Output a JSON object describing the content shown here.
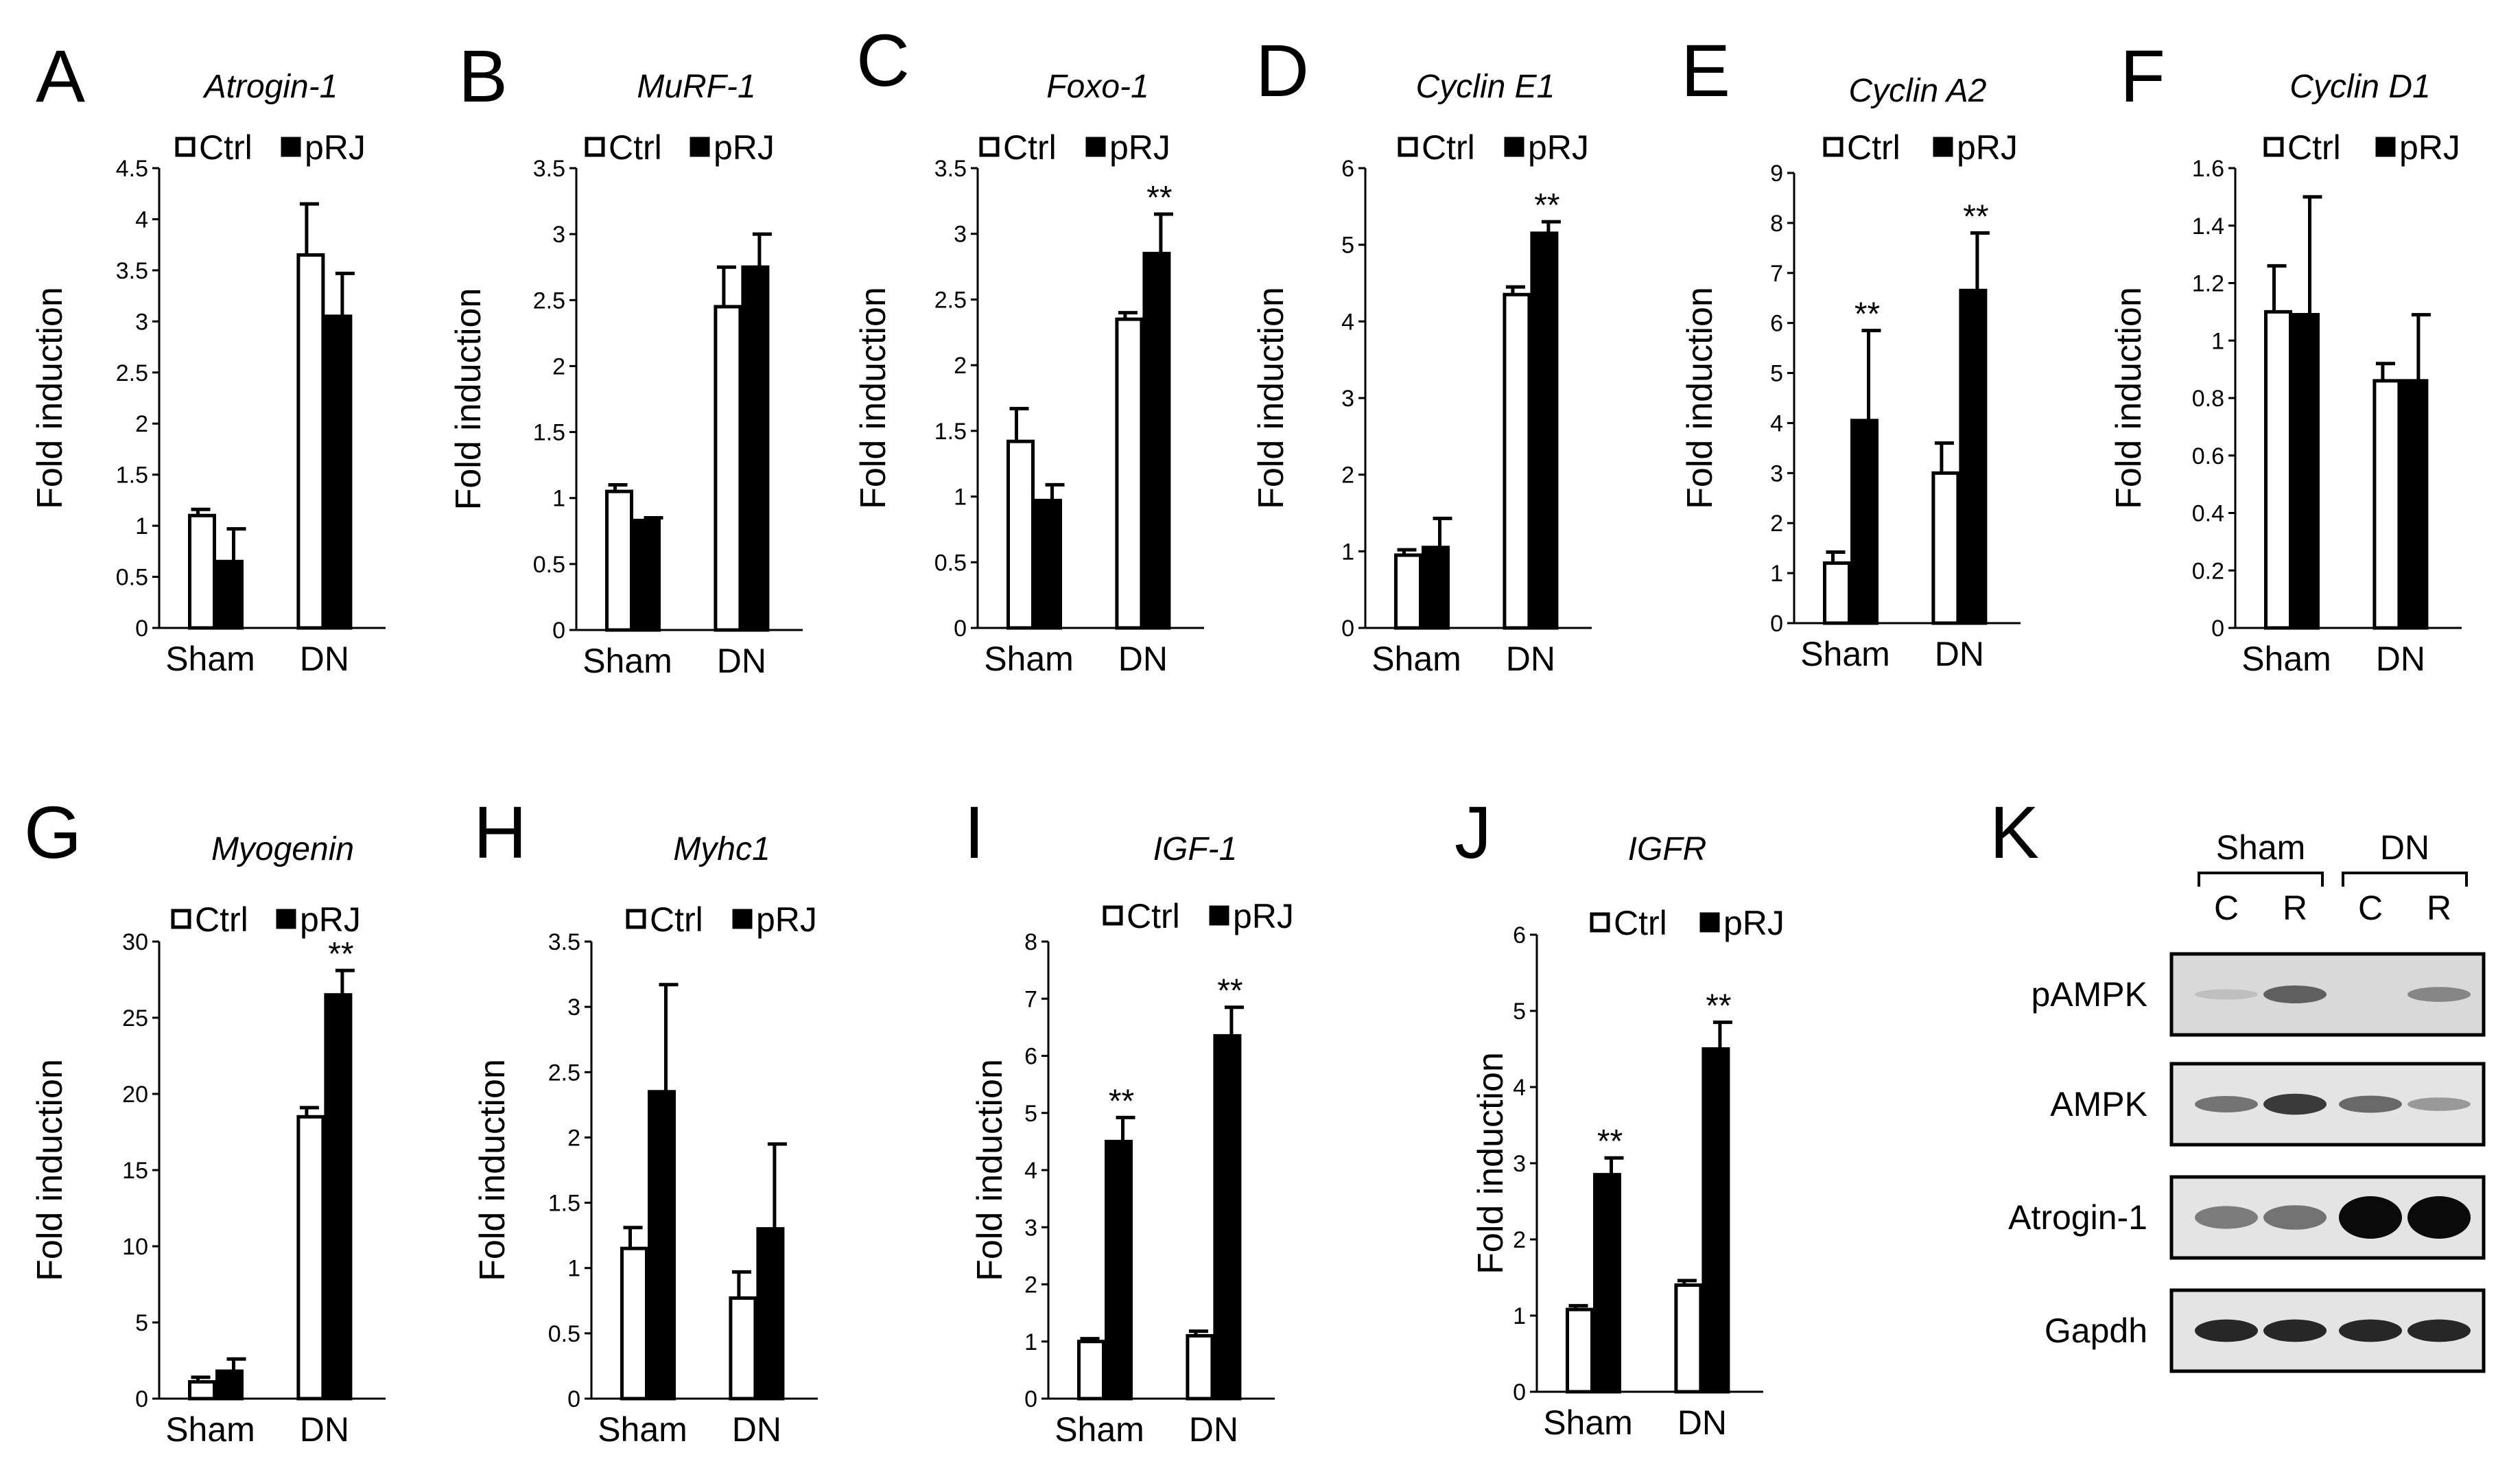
{
  "chart_data": [
    {
      "type": "bar",
      "panel": "A",
      "title": "Atrogin-1",
      "ylabel": "Fold induction",
      "ylim": [
        0,
        4.5
      ],
      "yticks": [
        "0",
        "0.5",
        "1",
        "1.5",
        "2",
        "2.5",
        "3",
        "3.5",
        "4",
        "4.5"
      ],
      "legend": [
        "Ctrl",
        "pRJ"
      ],
      "categories": [
        "Sham",
        "DN"
      ],
      "series": [
        {
          "name": "Ctrl",
          "values": [
            1.1,
            3.65
          ],
          "errors": [
            0.06,
            0.5
          ]
        },
        {
          "name": "pRJ",
          "values": [
            0.65,
            3.05
          ],
          "errors": [
            0.32,
            0.42
          ]
        }
      ],
      "annotations": []
    },
    {
      "type": "bar",
      "panel": "B",
      "title": "MuRF-1",
      "ylabel": "Fold induction",
      "ylim": [
        0,
        3.5
      ],
      "yticks": [
        "0",
        "0.5",
        "1",
        "1.5",
        "2",
        "2.5",
        "3",
        "3.5"
      ],
      "legend": [
        "Ctrl",
        "pRJ"
      ],
      "categories": [
        "Sham",
        "DN"
      ],
      "series": [
        {
          "name": "Ctrl",
          "values": [
            1.05,
            2.45
          ],
          "errors": [
            0.05,
            0.3
          ]
        },
        {
          "name": "pRJ",
          "values": [
            0.83,
            2.75
          ],
          "errors": [
            0.02,
            0.25
          ]
        }
      ],
      "annotations": []
    },
    {
      "type": "bar",
      "panel": "C",
      "title": "Foxo-1",
      "ylabel": "Fold induction",
      "ylim": [
        0,
        3.5
      ],
      "yticks": [
        "0",
        "0.5",
        "1",
        "1.5",
        "2",
        "2.5",
        "3",
        "3.5"
      ],
      "legend": [
        "Ctrl",
        "pRJ"
      ],
      "categories": [
        "Sham",
        "DN"
      ],
      "series": [
        {
          "name": "Ctrl",
          "values": [
            1.42,
            2.35
          ],
          "errors": [
            0.25,
            0.05
          ]
        },
        {
          "name": "pRJ",
          "values": [
            0.97,
            2.85
          ],
          "errors": [
            0.12,
            0.3
          ]
        }
      ],
      "annotations": [
        {
          "category": "DN",
          "series": "pRJ",
          "text": "**"
        }
      ]
    },
    {
      "type": "bar",
      "panel": "D",
      "title": "Cyclin E1",
      "ylabel": "Fold induction",
      "ylim": [
        0,
        6
      ],
      "yticks": [
        "0",
        "1",
        "2",
        "3",
        "4",
        "5",
        "6"
      ],
      "legend": [
        "Ctrl",
        "pRJ"
      ],
      "categories": [
        "Sham",
        "DN"
      ],
      "series": [
        {
          "name": "Ctrl",
          "values": [
            0.95,
            4.35
          ],
          "errors": [
            0.07,
            0.1
          ]
        },
        {
          "name": "pRJ",
          "values": [
            1.05,
            5.15
          ],
          "errors": [
            0.38,
            0.15
          ]
        }
      ],
      "annotations": [
        {
          "category": "DN",
          "series": "pRJ",
          "text": "**"
        }
      ]
    },
    {
      "type": "bar",
      "panel": "E",
      "title": "Cyclin  A2",
      "ylabel": "Fold induction",
      "ylim": [
        0,
        9
      ],
      "yticks": [
        "0",
        "1",
        "2",
        "3",
        "4",
        "5",
        "6",
        "7",
        "8",
        "9"
      ],
      "legend": [
        "Ctrl",
        "pRJ"
      ],
      "categories": [
        "Sham",
        "DN"
      ],
      "series": [
        {
          "name": "Ctrl",
          "values": [
            1.2,
            3.0
          ],
          "errors": [
            0.22,
            0.6
          ]
        },
        {
          "name": "pRJ",
          "values": [
            4.05,
            6.65
          ],
          "errors": [
            1.8,
            1.15
          ]
        }
      ],
      "annotations": [
        {
          "category": "Sham",
          "series": "pRJ",
          "text": "**"
        },
        {
          "category": "DN",
          "series": "pRJ",
          "text": "**"
        }
      ]
    },
    {
      "type": "bar",
      "panel": "F",
      "title": "Cyclin D1",
      "ylabel": "Fold induction",
      "ylim": [
        0,
        1.6
      ],
      "yticks": [
        "0",
        "0.2",
        "0.4",
        "0.6",
        "0.8",
        "1",
        "1.2",
        "1.4",
        "1.6"
      ],
      "legend": [
        "Ctrl",
        "pRJ"
      ],
      "categories": [
        "Sham",
        "DN"
      ],
      "series": [
        {
          "name": "Ctrl",
          "values": [
            1.1,
            0.86
          ],
          "errors": [
            0.16,
            0.06
          ]
        },
        {
          "name": "pRJ",
          "values": [
            1.09,
            0.86
          ],
          "errors": [
            0.41,
            0.23
          ]
        }
      ],
      "annotations": []
    },
    {
      "type": "bar",
      "panel": "G",
      "title": "Myogenin",
      "ylabel": "Fold induction",
      "ylim": [
        0,
        30
      ],
      "yticks": [
        "0",
        "5",
        "10",
        "15",
        "20",
        "25",
        "30"
      ],
      "legend": [
        "Ctrl",
        "pRJ"
      ],
      "categories": [
        "Sham",
        "DN"
      ],
      "series": [
        {
          "name": "Ctrl",
          "values": [
            1.1,
            18.5
          ],
          "errors": [
            0.3,
            0.6
          ]
        },
        {
          "name": "pRJ",
          "values": [
            1.8,
            26.5
          ],
          "errors": [
            0.8,
            1.6
          ]
        }
      ],
      "annotations": [
        {
          "category": "DN",
          "series": "pRJ",
          "text": "**"
        }
      ]
    },
    {
      "type": "bar",
      "panel": "H",
      "title": "Myhc1",
      "ylabel": "Fold induction",
      "ylim": [
        0,
        3.5
      ],
      "yticks": [
        "0",
        "0.5",
        "1",
        "1.5",
        "2",
        "2.5",
        "3",
        "3.5"
      ],
      "legend": [
        "Ctrl",
        "pRJ"
      ],
      "categories": [
        "Sham",
        "DN"
      ],
      "series": [
        {
          "name": "Ctrl",
          "values": [
            1.15,
            0.77
          ],
          "errors": [
            0.16,
            0.2
          ]
        },
        {
          "name": "pRJ",
          "values": [
            2.35,
            1.3
          ],
          "errors": [
            0.82,
            0.65
          ]
        }
      ],
      "annotations": []
    },
    {
      "type": "bar",
      "panel": "I",
      "title": "IGF-1",
      "ylabel": "Fold induction",
      "ylim": [
        0,
        8
      ],
      "yticks": [
        "0",
        "1",
        "2",
        "3",
        "4",
        "5",
        "6",
        "7",
        "8"
      ],
      "legend": [
        "Ctrl",
        "pRJ"
      ],
      "categories": [
        "Sham",
        "DN"
      ],
      "series": [
        {
          "name": "Ctrl",
          "values": [
            1.0,
            1.1
          ],
          "errors": [
            0.05,
            0.08
          ]
        },
        {
          "name": "pRJ",
          "values": [
            4.5,
            6.35
          ],
          "errors": [
            0.42,
            0.5
          ]
        }
      ],
      "annotations": [
        {
          "category": "Sham",
          "series": "pRJ",
          "text": "**"
        },
        {
          "category": "DN",
          "series": "pRJ",
          "text": "**"
        }
      ]
    },
    {
      "type": "bar",
      "panel": "J",
      "title": "IGFR",
      "ylabel": "Fold induction",
      "ylim": [
        0,
        6
      ],
      "yticks": [
        "0",
        "1",
        "2",
        "3",
        "4",
        "5",
        "6"
      ],
      "legend": [
        "Ctrl",
        "pRJ"
      ],
      "categories": [
        "Sham",
        "DN"
      ],
      "series": [
        {
          "name": "Ctrl",
          "values": [
            1.08,
            1.4
          ],
          "errors": [
            0.05,
            0.06
          ]
        },
        {
          "name": "pRJ",
          "values": [
            2.85,
            4.5
          ],
          "errors": [
            0.22,
            0.35
          ]
        }
      ],
      "annotations": [
        {
          "category": "Sham",
          "series": "pRJ",
          "text": "**"
        },
        {
          "category": "DN",
          "series": "pRJ",
          "text": "**"
        }
      ]
    }
  ],
  "blot": {
    "panel": "K",
    "groups": [
      "Sham",
      "DN"
    ],
    "lanes": [
      "C",
      "R",
      "C",
      "R"
    ],
    "rows": [
      {
        "label": "pAMPK",
        "bands": [
          0.05,
          0.55,
          0.0,
          0.35
        ]
      },
      {
        "label": "AMPK",
        "bands": [
          0.45,
          0.75,
          0.5,
          0.25
        ]
      },
      {
        "label": "Atrogin-1",
        "bands": [
          0.4,
          0.45,
          1.0,
          1.0
        ]
      },
      {
        "label": "Gapdh",
        "bands": [
          0.85,
          0.85,
          0.85,
          0.85
        ]
      }
    ]
  },
  "colors": {
    "ctrl_fill": "#ffffff",
    "prj_fill": "#000000",
    "stroke": "#000000"
  }
}
